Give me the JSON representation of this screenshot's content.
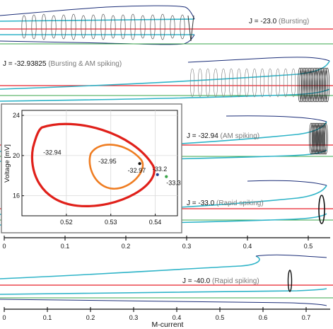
{
  "chart_data": [
    {
      "type": "line",
      "title": "",
      "xlabel": "M-current",
      "panels": [
        {
          "J_label": "J = -23.0",
          "regime": "(Bursting)"
        },
        {
          "J_label": "J = -32.93825",
          "regime": "(Bursting & AM spiking)"
        },
        {
          "J_label": "J = -32.94",
          "regime": "(AM spiking)"
        },
        {
          "J_label": "J = -33.0",
          "regime": "(Rapid spiking)"
        },
        {
          "J_label": "J = -40.0",
          "regime": "(Rapid spiking)"
        }
      ],
      "axes": [
        {
          "name": "upper",
          "xlim": [
            0,
            0.55
          ],
          "tick_labels": [
            "0",
            "0.1",
            "0.2",
            "0.3",
            "0.4",
            "0.5"
          ],
          "ticks": [
            0,
            0.1,
            0.2,
            0.3,
            0.4,
            0.5
          ]
        },
        {
          "name": "lower",
          "xlim": [
            0,
            0.75
          ],
          "tick_labels": [
            "0",
            "0.1",
            "0.2",
            "0.3",
            "0.4",
            "0.5",
            "0.6",
            "0.7"
          ],
          "ticks": [
            0,
            0.1,
            0.2,
            0.3,
            0.4,
            0.5,
            0.6,
            0.7
          ]
        }
      ],
      "colors": {
        "red_line": "#e8212b",
        "cyan_curve": "#2fb4c8",
        "green_line": "#3aa64a",
        "navy_curve": "#1c2e78",
        "orbit": "#222222"
      }
    },
    {
      "type": "line",
      "title": "",
      "xlabel": "",
      "ylabel": "Voltage [mV]",
      "xlim": [
        0.51,
        0.545
      ],
      "ylim": [
        14,
        24.5
      ],
      "x_tick_labels": [
        "0.52",
        "0.53",
        "0.54"
      ],
      "x_ticks": [
        0.52,
        0.53,
        0.54
      ],
      "y_tick_labels": [
        "16",
        "20",
        "24"
      ],
      "y_ticks": [
        16,
        20,
        24
      ],
      "grid": true,
      "orbit_labels": [
        {
          "label": "-32.94",
          "color": "#e0201a"
        },
        {
          "label": "-32.95",
          "color": "#ef7d22"
        }
      ],
      "points": [
        {
          "label": "-32.97",
          "x": 0.5365,
          "y": 19.2,
          "color": "#111111"
        },
        {
          "label": "-33.2",
          "x": 0.5405,
          "y": 18.1,
          "color": "#233a8a"
        },
        {
          "label": "-33.3",
          "x": 0.5425,
          "y": 17.9,
          "color": "#3aa64a"
        }
      ]
    }
  ]
}
